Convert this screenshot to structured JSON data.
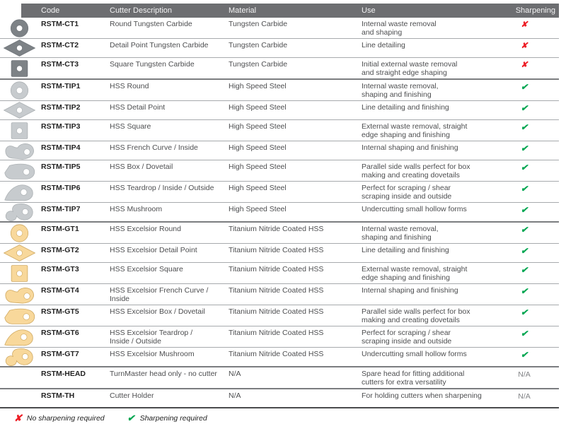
{
  "header": {
    "columns": [
      "Code",
      "Cutter Description",
      "Material",
      "Use",
      "Sharpening"
    ]
  },
  "glyphs": {
    "check": "✔",
    "cross": "✘",
    "na": "N/A"
  },
  "colors": {
    "header_bg": "#6d6e71",
    "check_green": "#00a651",
    "cross_red": "#ed1c24",
    "carbide": {
      "fill": "#7d8286",
      "stroke": "#70757a"
    },
    "hss": {
      "fill": "#c7cbce",
      "stroke": "#adb2b5"
    },
    "tin": {
      "fill": "#f8d89b",
      "stroke": "#d0aa63"
    }
  },
  "rows": [
    {
      "code": "RSTM-CT1",
      "icon": "round",
      "icon_color": "carbide",
      "description": "Round Tungsten Carbide",
      "material": "Tungsten Carbide",
      "use": "Internal waste removal\nand shaping",
      "sharpening": "no"
    },
    {
      "code": "RSTM-CT2",
      "icon": "detail-point",
      "icon_color": "carbide",
      "description": "Detail Point Tungsten Carbide",
      "material": "Tungsten Carbide",
      "use": "Line detailing",
      "sharpening": "no"
    },
    {
      "code": "RSTM-CT3",
      "icon": "square",
      "icon_color": "carbide",
      "description": "Square Tungsten Carbide",
      "material": "Tungsten Carbide",
      "use": "Initial external waste removal\nand straight edge shaping",
      "sharpening": "no",
      "group_end": true
    },
    {
      "code": "RSTM-TIP1",
      "icon": "round",
      "icon_color": "hss",
      "description": "HSS Round",
      "material": "High Speed Steel",
      "use": "Internal waste removal,\nshaping and finishing",
      "sharpening": "yes"
    },
    {
      "code": "RSTM-TIP2",
      "icon": "detail-point",
      "icon_color": "hss",
      "description": "HSS Detail Point",
      "material": "High Speed Steel",
      "use": "Line detailing and finishing",
      "sharpening": "yes"
    },
    {
      "code": "RSTM-TIP3",
      "icon": "square",
      "icon_color": "hss",
      "description": "HSS Square",
      "material": "High Speed Steel",
      "use": "External waste removal, straight\nedge shaping and finishing",
      "sharpening": "yes"
    },
    {
      "code": "RSTM-TIP4",
      "icon": "french-curve",
      "icon_color": "hss",
      "description": "HSS French Curve / Inside",
      "material": "High Speed Steel",
      "use": "Internal shaping and finishing",
      "sharpening": "yes"
    },
    {
      "code": "RSTM-TIP5",
      "icon": "box-dovetail",
      "icon_color": "hss",
      "description": "HSS Box / Dovetail",
      "material": "High Speed Steel",
      "use": "Parallel side walls perfect for box\nmaking and creating dovetails",
      "sharpening": "yes"
    },
    {
      "code": "RSTM-TIP6",
      "icon": "teardrop",
      "icon_color": "hss",
      "description": "HSS Teardrop / Inside / Outside",
      "material": "High Speed Steel",
      "use": "Perfect for scraping / shear\nscraping inside and outside",
      "sharpening": "yes"
    },
    {
      "code": "RSTM-TIP7",
      "icon": "mushroom",
      "icon_color": "hss",
      "description": "HSS Mushroom",
      "material": "High Speed Steel",
      "use": "Undercutting small hollow forms",
      "sharpening": "yes",
      "group_end": true
    },
    {
      "code": "RSTM-GT1",
      "icon": "round",
      "icon_color": "tin",
      "description": "HSS Excelsior Round",
      "material": "Titanium Nitride Coated HSS",
      "use": "Internal waste removal,\nshaping and finishing",
      "sharpening": "yes"
    },
    {
      "code": "RSTM-GT2",
      "icon": "detail-point",
      "icon_color": "tin",
      "description": "HSS Excelsior Detail Point",
      "material": "Titanium Nitride Coated HSS",
      "use": "Line detailing and finishing",
      "sharpening": "yes"
    },
    {
      "code": "RSTM-GT3",
      "icon": "square",
      "icon_color": "tin",
      "description": "HSS Excelsior Square",
      "material": "Titanium Nitride Coated HSS",
      "use": "External waste removal, straight\nedge shaping and finishing",
      "sharpening": "yes"
    },
    {
      "code": "RSTM-GT4",
      "icon": "french-curve",
      "icon_color": "tin",
      "description": "HSS Excelsior French Curve /\nInside",
      "material": "Titanium Nitride Coated HSS",
      "use": "Internal shaping and finishing",
      "sharpening": "yes"
    },
    {
      "code": "RSTM-GT5",
      "icon": "box-dovetail",
      "icon_color": "tin",
      "description": "HSS Excelsior Box / Dovetail",
      "material": "Titanium Nitride Coated HSS",
      "use": "Parallel side walls perfect for box\nmaking and creating dovetails",
      "sharpening": "yes"
    },
    {
      "code": "RSTM-GT6",
      "icon": "teardrop",
      "icon_color": "tin",
      "description": "HSS Excelsior Teardrop /\nInside / Outside",
      "material": "Titanium Nitride Coated HSS",
      "use": "Perfect for scraping / shear\nscraping inside and outside",
      "sharpening": "yes"
    },
    {
      "code": "RSTM-GT7",
      "icon": "mushroom",
      "icon_color": "tin",
      "description": "HSS Excelsior Mushroom",
      "material": "Titanium Nitride Coated HSS",
      "use": "Undercutting small hollow forms",
      "sharpening": "yes",
      "group_end": true
    },
    {
      "code": "RSTM-HEAD",
      "icon": null,
      "icon_color": null,
      "description": "TurnMaster head only - no cutter",
      "material": "N/A",
      "use": "Spare head for fitting additional\ncutters for extra versatility",
      "sharpening": "na",
      "group_end": true
    },
    {
      "code": "RSTM-TH",
      "icon": null,
      "icon_color": null,
      "description": "Cutter Holder",
      "material": "N/A",
      "use": "For holding cutters when sharpening",
      "sharpening": "na"
    }
  ],
  "legend": {
    "no_label": "No sharpening required",
    "yes_label": "Sharpening required"
  }
}
